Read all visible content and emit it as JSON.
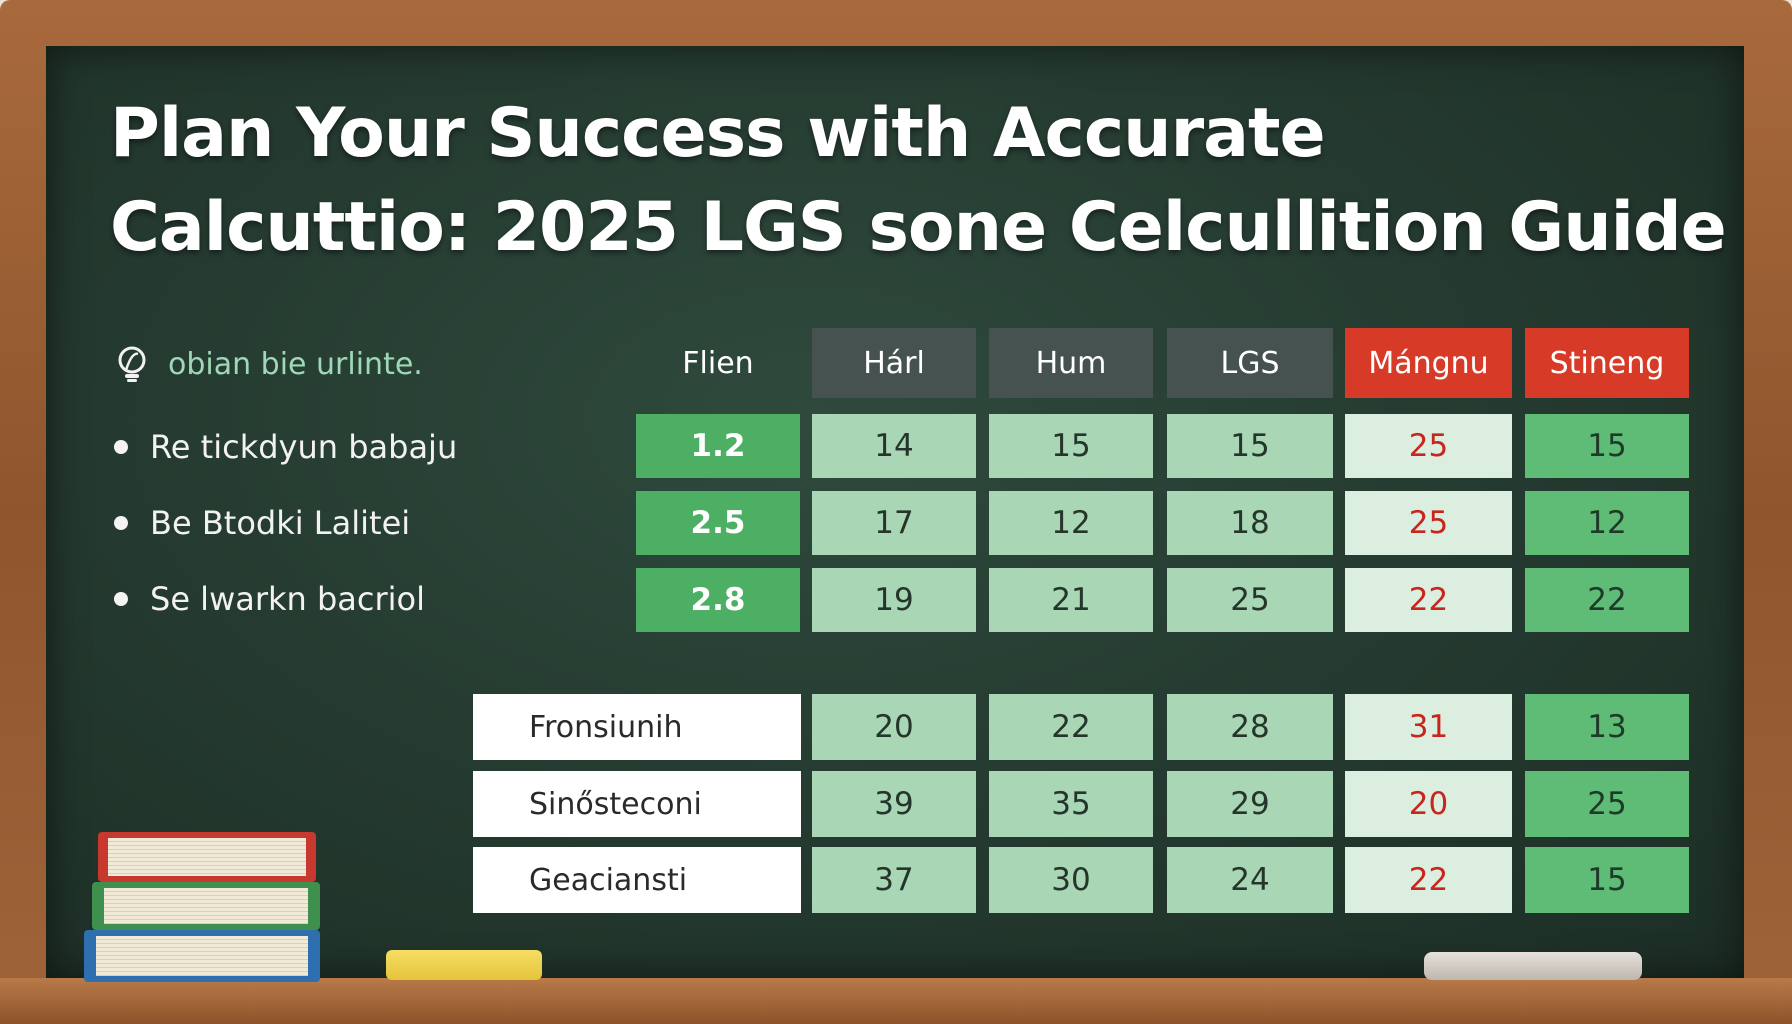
{
  "title": {
    "line1": "Plan Your Success with Accurate",
    "line2": "Calcuttio: 2025 LGS sone Celcullition Guide"
  },
  "subtitle": "obian bie urlinte.",
  "bullets": [
    "Re tickdyun babaju",
    "Be Btodki Lalitei",
    "Se lwarkn bacriol"
  ],
  "table": {
    "headers": [
      "Flien",
      "Hárl",
      "Hum",
      "LGS",
      "Mángnu",
      "Stineng"
    ],
    "top_rows": [
      [
        "1.2",
        "14",
        "15",
        "15",
        "25",
        "15"
      ],
      [
        "2.5",
        "17",
        "12",
        "18",
        "25",
        "12"
      ],
      [
        "2.8",
        "19",
        "21",
        "25",
        "22",
        "22"
      ]
    ],
    "bottom_rows": [
      [
        "Fronsiunih",
        "20",
        "22",
        "28",
        "31",
        "13"
      ],
      [
        "Sinősteconi",
        "39",
        "35",
        "29",
        "20",
        "25"
      ],
      [
        "Geaciansti",
        "37",
        "30",
        "24",
        "22",
        "15"
      ]
    ]
  },
  "colors": {
    "board": "#24392f",
    "frame": "#9a5f35",
    "header_gray": "#465250",
    "header_red": "#d73b28",
    "cell_green": "#4caf63",
    "cell_light_green": "#a9d7b5",
    "cell_pale": "#dbeee0",
    "value_red": "#c8261d"
  },
  "icons": {
    "subtitle_icon": "lightbulb-icon"
  }
}
